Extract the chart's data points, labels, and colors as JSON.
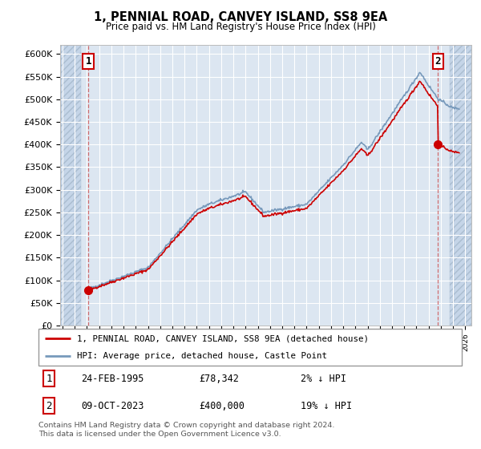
{
  "title": "1, PENNIAL ROAD, CANVEY ISLAND, SS8 9EA",
  "subtitle": "Price paid vs. HM Land Registry's House Price Index (HPI)",
  "ylabel_ticks": [
    "£0",
    "£50K",
    "£100K",
    "£150K",
    "£200K",
    "£250K",
    "£300K",
    "£350K",
    "£400K",
    "£450K",
    "£500K",
    "£550K",
    "£600K"
  ],
  "ytick_values": [
    0,
    50000,
    100000,
    150000,
    200000,
    250000,
    300000,
    350000,
    400000,
    450000,
    500000,
    550000,
    600000
  ],
  "xlim_start": 1992.8,
  "xlim_end": 2026.5,
  "ylim_min": 0,
  "ylim_max": 620000,
  "sale1_year": 1995.12,
  "sale1_price": 78342,
  "sale2_year": 2023.77,
  "sale2_price": 400000,
  "legend_line1": "1, PENNIAL ROAD, CANVEY ISLAND, SS8 9EA (detached house)",
  "legend_line2": "HPI: Average price, detached house, Castle Point",
  "table_row1": [
    "1",
    "24-FEB-1995",
    "£78,342",
    "2% ↓ HPI"
  ],
  "table_row2": [
    "2",
    "09-OCT-2023",
    "£400,000",
    "19% ↓ HPI"
  ],
  "footer": "Contains HM Land Registry data © Crown copyright and database right 2024.\nThis data is licensed under the Open Government Licence v3.0.",
  "bg_color": "#dce6f1",
  "line_color_red": "#cc0000",
  "line_color_blue": "#7799bb",
  "grid_color": "#ffffff",
  "marker_color": "#cc0000",
  "hatch_left_end": 1994.5,
  "hatch_right_start": 2024.7,
  "data_start_year": 1995.0,
  "data_end_year": 2025.5
}
